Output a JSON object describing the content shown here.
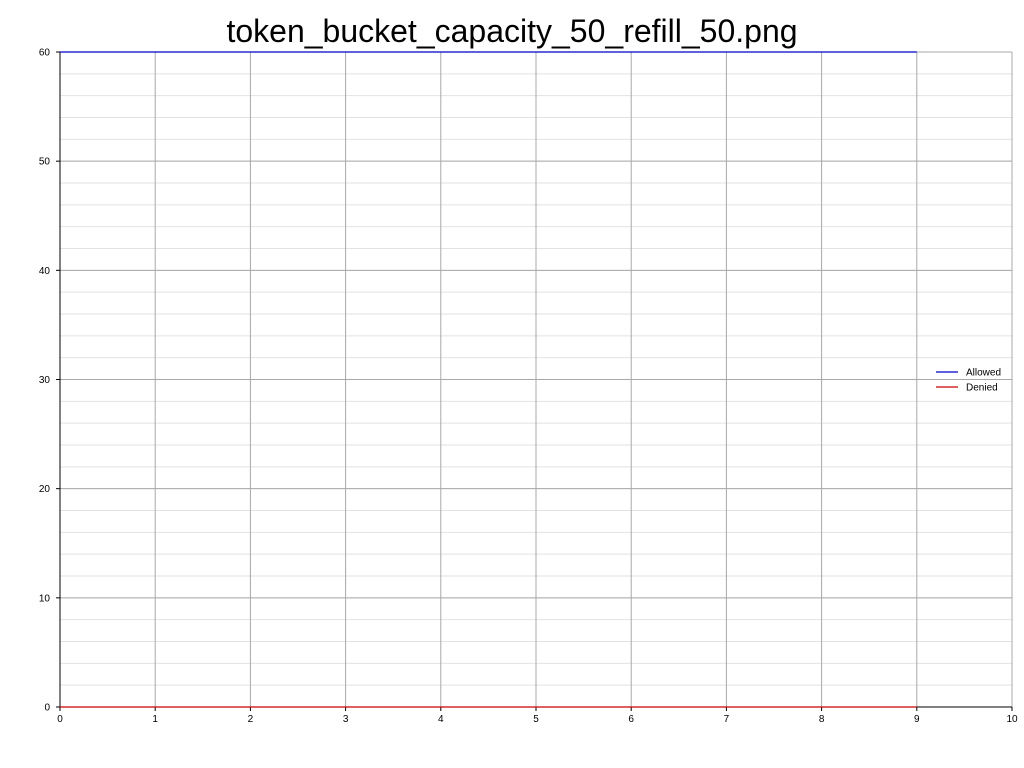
{
  "chart_data": {
    "type": "line",
    "title": "token_bucket_capacity_50_refill_50.png",
    "xlabel": "",
    "ylabel": "",
    "xlim": [
      0,
      10
    ],
    "ylim": [
      0,
      60
    ],
    "x_ticks": [
      "0",
      "1",
      "2",
      "3",
      "4",
      "5",
      "6",
      "7",
      "8",
      "9",
      "10"
    ],
    "y_ticks": [
      "0",
      "10",
      "20",
      "30",
      "40",
      "50",
      "60"
    ],
    "grid": true,
    "minor_grid_step": 2,
    "legend_position": "right",
    "series": [
      {
        "name": "Allowed",
        "color": "#0000cc",
        "x": [
          0,
          1,
          2,
          3,
          4,
          5,
          6,
          7,
          8,
          9
        ],
        "values": [
          60,
          60,
          60,
          60,
          60,
          60,
          60,
          60,
          60,
          60
        ]
      },
      {
        "name": "Denied",
        "color": "#cc0000",
        "x": [
          0,
          1,
          2,
          3,
          4,
          5,
          6,
          7,
          8,
          9
        ],
        "values": [
          0,
          0,
          0,
          0,
          0,
          0,
          0,
          0,
          0,
          0
        ]
      }
    ]
  }
}
